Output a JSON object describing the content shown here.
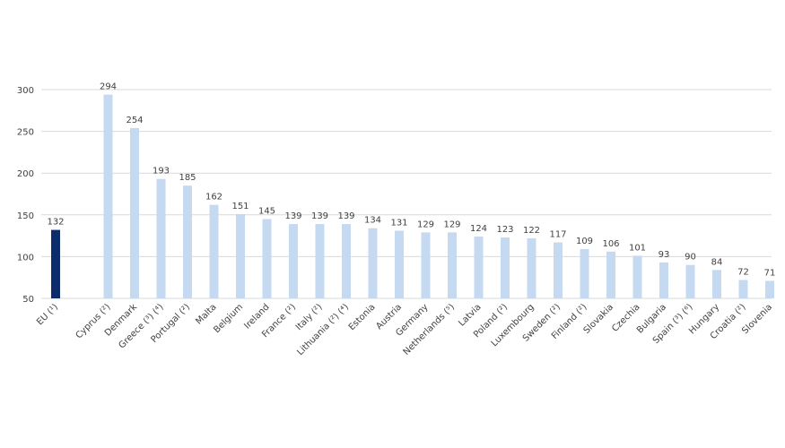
{
  "chart_data": {
    "type": "bar",
    "categories": [
      "EU (¹)",
      "Cyprus (²)",
      "Denmark",
      "Greece (³) (⁴)",
      "Portugal (²)",
      "Malta",
      "Belgium",
      "Ireland",
      "France (²)",
      "Italy (²)",
      "Lithuania (²) (⁴)",
      "Estonia",
      "Austria",
      "Germany",
      "Netherlands (⁵)",
      "Latvia",
      "Poland (²)",
      "Luxembourg",
      "Sweden (²)",
      "Finland (²)",
      "Slovakia",
      "Czechia",
      "Bulgaria",
      "Spain (³) (⁶)",
      "Hungary",
      "Croatia (²)",
      "Slovenia"
    ],
    "values": [
      132,
      294,
      254,
      193,
      185,
      162,
      151,
      145,
      139,
      139,
      139,
      134,
      131,
      129,
      129,
      124,
      123,
      122,
      117,
      109,
      106,
      101,
      93,
      90,
      84,
      72,
      71
    ],
    "ylim": [
      50,
      300
    ],
    "yticks": [
      50,
      100,
      150,
      200,
      250,
      300
    ],
    "grid": true,
    "legend": "none",
    "colors": {
      "highlight": "#0d2c6b",
      "bar": "#c5d9f1"
    }
  }
}
